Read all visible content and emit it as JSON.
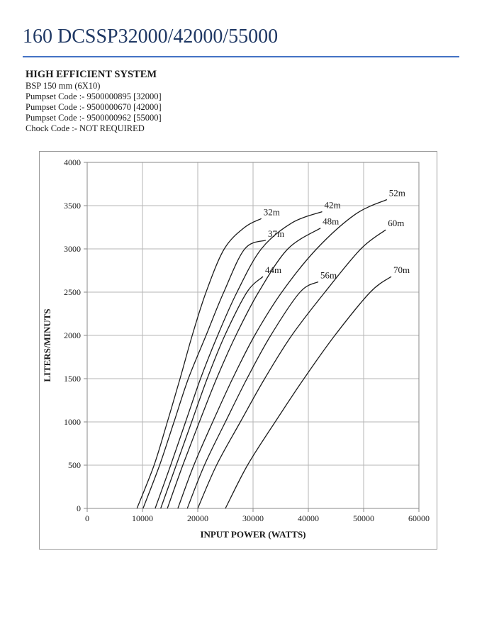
{
  "page": {
    "title": "160 DCSSP32000/42000/55000"
  },
  "specs": {
    "heading": "HIGH EFFICIENT SYSTEM",
    "lines": [
      "BSP 150 mm (6X10)",
      "Pumpset Code :- 9500000895 [32000]",
      "Pumpset Code :- 9500000670 [42000]",
      "Pumpset Code :- 9500000962 [55000]",
      "Chock Code :- NOT REQUIRED"
    ]
  },
  "colors": {
    "title_text": "#1f3864",
    "title_rule": "#4472c4",
    "text": "#1a1a1a",
    "grid": "#b5b5b5",
    "axis": "#8a8a8a",
    "chart_border": "#9b9b9b",
    "curve": "#1c1c1c"
  },
  "chart_data": {
    "type": "line",
    "title": "",
    "xlabel": "INPUT POWER (WATTS)",
    "ylabel": "LITERS/MINUTS",
    "xlim": [
      0,
      60000
    ],
    "ylim": [
      0,
      4000
    ],
    "x_ticks": [
      0,
      10000,
      20000,
      30000,
      40000,
      50000,
      60000
    ],
    "y_ticks": [
      0,
      500,
      1000,
      1500,
      2000,
      2500,
      3000,
      3500,
      4000
    ],
    "grid": true,
    "legend_position": "labels at curve ends",
    "series": [
      {
        "name": "32m",
        "points": [
          [
            9000,
            0
          ],
          [
            12100,
            500
          ],
          [
            14500,
            1000
          ],
          [
            16800,
            1500
          ],
          [
            19000,
            2000
          ],
          [
            21500,
            2500
          ],
          [
            24800,
            3000
          ],
          [
            28500,
            3250
          ],
          [
            31500,
            3350
          ]
        ]
      },
      {
        "name": "37m",
        "points": [
          [
            10100,
            0
          ],
          [
            13100,
            500
          ],
          [
            15700,
            1000
          ],
          [
            18300,
            1500
          ],
          [
            21500,
            2000
          ],
          [
            24700,
            2500
          ],
          [
            28500,
            3000
          ],
          [
            32300,
            3100
          ]
        ]
      },
      {
        "name": "42m",
        "points": [
          [
            12300,
            0
          ],
          [
            15100,
            500
          ],
          [
            17800,
            1000
          ],
          [
            20500,
            1500
          ],
          [
            23600,
            2000
          ],
          [
            27100,
            2500
          ],
          [
            31500,
            3000
          ],
          [
            37000,
            3300
          ],
          [
            42500,
            3430
          ]
        ]
      },
      {
        "name": "44m",
        "points": [
          [
            13300,
            0
          ],
          [
            16100,
            500
          ],
          [
            18900,
            1000
          ],
          [
            21700,
            1500
          ],
          [
            24900,
            2000
          ],
          [
            28900,
            2500
          ],
          [
            31800,
            2680
          ]
        ]
      },
      {
        "name": "48m",
        "points": [
          [
            14500,
            0
          ],
          [
            17300,
            500
          ],
          [
            20300,
            1000
          ],
          [
            23400,
            1500
          ],
          [
            26900,
            2000
          ],
          [
            31000,
            2500
          ],
          [
            36300,
            3000
          ],
          [
            42200,
            3240
          ]
        ]
      },
      {
        "name": "52m",
        "points": [
          [
            16400,
            0
          ],
          [
            19300,
            500
          ],
          [
            22700,
            1000
          ],
          [
            26300,
            1500
          ],
          [
            30300,
            2000
          ],
          [
            35200,
            2500
          ],
          [
            41500,
            3000
          ],
          [
            48500,
            3400
          ],
          [
            54200,
            3570
          ]
        ]
      },
      {
        "name": "56m",
        "points": [
          [
            18100,
            0
          ],
          [
            21200,
            500
          ],
          [
            25000,
            1000
          ],
          [
            28900,
            1500
          ],
          [
            33200,
            2000
          ],
          [
            38500,
            2500
          ],
          [
            41800,
            2620
          ]
        ]
      },
      {
        "name": "60m",
        "points": [
          [
            20000,
            0
          ],
          [
            23400,
            500
          ],
          [
            27700,
            1000
          ],
          [
            32100,
            1500
          ],
          [
            37000,
            2000
          ],
          [
            43000,
            2500
          ],
          [
            49500,
            3000
          ],
          [
            54000,
            3220
          ]
        ]
      },
      {
        "name": "70m",
        "points": [
          [
            25000,
            0
          ],
          [
            29000,
            500
          ],
          [
            34000,
            1000
          ],
          [
            39200,
            1500
          ],
          [
            44800,
            2000
          ],
          [
            51200,
            2500
          ],
          [
            55000,
            2680
          ]
        ]
      }
    ]
  }
}
